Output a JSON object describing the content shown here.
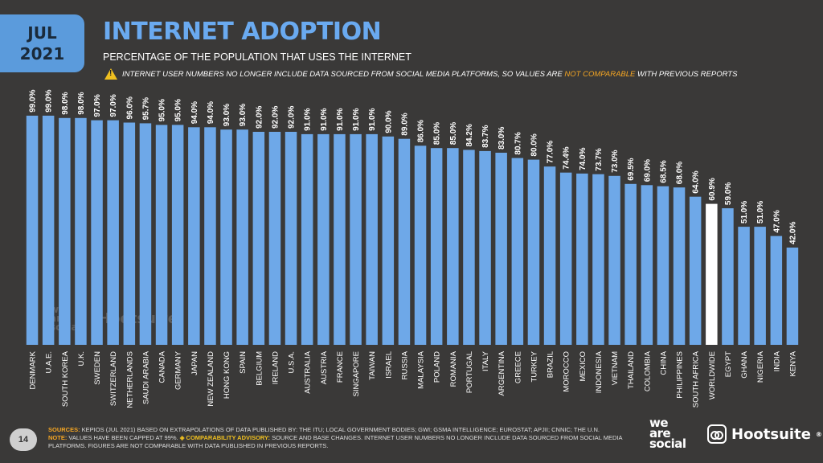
{
  "header": {
    "month": "JUL",
    "year": "2021",
    "title": "INTERNET ADOPTION",
    "subtitle": "PERCENTAGE OF THE POPULATION THAT USES THE INTERNET",
    "warning_pre": "INTERNET USER NUMBERS NO LONGER INCLUDE DATA SOURCED FROM SOCIAL MEDIA PLATFORMS, SO VALUES ARE ",
    "warning_highlight": "NOT COMPARABLE",
    "warning_post": " WITH PREVIOUS REPORTS"
  },
  "colors": {
    "background": "#3a3938",
    "bar": "#6ea8e8",
    "highlight_bar": "#ffffff",
    "accent": "#f5a623"
  },
  "chart_data": {
    "type": "bar",
    "title": "INTERNET ADOPTION",
    "subtitle": "PERCENTAGE OF THE POPULATION THAT USES THE INTERNET",
    "ylim": [
      0,
      100
    ],
    "grid": false,
    "highlight": "WORLDWIDE",
    "categories": [
      "DENMARK",
      "U.A.E.",
      "SOUTH KOREA",
      "U.K.",
      "SWEDEN",
      "SWITZERLAND",
      "NETHERLANDS",
      "SAUDI ARABIA",
      "CANADA",
      "GERMANY",
      "JAPAN",
      "NEW ZEALAND",
      "HONG KONG",
      "SPAIN",
      "BELGIUM",
      "IRELAND",
      "U.S.A.",
      "AUSTRALIA",
      "AUSTRIA",
      "FRANCE",
      "SINGAPORE",
      "TAIWAN",
      "ISRAEL",
      "RUSSIA",
      "MALAYSIA",
      "POLAND",
      "ROMANIA",
      "PORTUGAL",
      "ITALY",
      "ARGENTINA",
      "GREECE",
      "TURKEY",
      "BRAZIL",
      "MOROCCO",
      "MEXICO",
      "INDONESIA",
      "VIETNAM",
      "THAILAND",
      "COLOMBIA",
      "CHINA",
      "PHILIPPINES",
      "SOUTH AFRICA",
      "WORLDWIDE",
      "EGYPT",
      "GHANA",
      "NIGERIA",
      "INDIA",
      "KENYA"
    ],
    "values": [
      99.0,
      99.0,
      98.0,
      98.0,
      97.0,
      97.0,
      96.0,
      95.7,
      95.0,
      95.0,
      94.0,
      94.0,
      93.0,
      93.0,
      92.0,
      92.0,
      92.0,
      91.0,
      91.0,
      91.0,
      91.0,
      91.0,
      90.0,
      89.0,
      86.0,
      85.0,
      85.0,
      84.2,
      83.7,
      83.0,
      80.7,
      80.0,
      77.0,
      74.4,
      74.0,
      73.7,
      73.0,
      69.5,
      69.0,
      68.5,
      68.0,
      64.0,
      60.9,
      59.0,
      51.0,
      51.0,
      47.0,
      42.0
    ],
    "value_labels": [
      "99.0%",
      "99.0%",
      "98.0%",
      "98.0%",
      "97.0%",
      "97.0%",
      "96.0%",
      "95.7%",
      "95.0%",
      "95.0%",
      "94.0%",
      "94.0%",
      "93.0%",
      "93.0%",
      "92.0%",
      "92.0%",
      "92.0%",
      "91.0%",
      "91.0%",
      "91.0%",
      "91.0%",
      "91.0%",
      "90.0%",
      "89.0%",
      "86.0%",
      "85.0%",
      "85.0%",
      "84.2%",
      "83.7%",
      "83.0%",
      "80.7%",
      "80.0%",
      "77.0%",
      "74.4%",
      "74.0%",
      "73.7%",
      "73.0%",
      "69.5%",
      "69.0%",
      "68.5%",
      "68.0%",
      "64.0%",
      "60.9%",
      "59.0%",
      "51.0%",
      "51.0%",
      "47.0%",
      "42.0%"
    ]
  },
  "footer": {
    "sources_label": "SOURCES:",
    "sources_text": " KEPIOS (JUL 2021) BASED ON EXTRAPOLATIONS OF DATA PUBLISHED BY: THE ITU; LOCAL GOVERNMENT BODIES; GWI; GSMA INTELLIGENCE; EUROSTAT; APJII; CNNIC; THE U.N.",
    "note_label": "NOTE:",
    "note_text": " VALUES HAVE BEEN CAPPED AT 99%. ",
    "advisory_label": "◈ COMPARABILITY ADVISORY:",
    "advisory_text": " SOURCE AND BASE CHANGES. INTERNET USER NUMBERS NO LONGER INCLUDE DATA SOURCED FROM SOCIAL MEDIA PLATFORMS. FIGURES ARE NOT COMPARABLE WITH DATA PUBLISHED IN PREVIOUS REPORTS.",
    "page_number": "14"
  },
  "brands": {
    "was_line1": "we",
    "was_line2": "are",
    "was_line3": "social",
    "hootsuite": "Hootsuite",
    "hootsuite_mark": "®"
  }
}
